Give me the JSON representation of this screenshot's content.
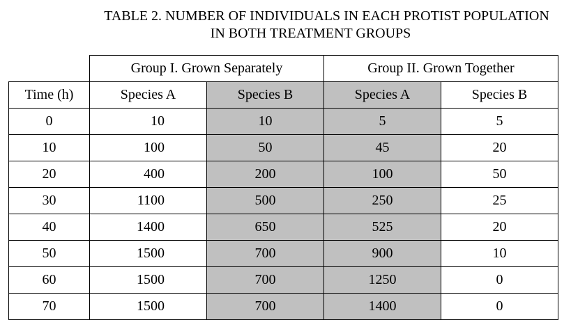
{
  "title": {
    "line1": "TABLE 2. NUMBER OF INDIVIDUALS IN EACH PROTIST POPULATION",
    "line2": "IN BOTH TREATMENT GROUPS"
  },
  "groups": {
    "group1": "Group I. Grown Separately",
    "group2": "Group II. Grown Together"
  },
  "headers": [
    "Time (h)",
    "Species A",
    "Species B",
    "Species A",
    "Species B"
  ],
  "rows": [
    [
      "0",
      "10",
      "10",
      "5",
      "5"
    ],
    [
      "10",
      "100",
      "50",
      "45",
      "20"
    ],
    [
      "20",
      "400",
      "200",
      "100",
      "50"
    ],
    [
      "30",
      "1100",
      "500",
      "250",
      "25"
    ],
    [
      "40",
      "1400",
      "650",
      "525",
      "20"
    ],
    [
      "50",
      "1500",
      "700",
      "900",
      "10"
    ],
    [
      "60",
      "1500",
      "700",
      "1250",
      "0"
    ],
    [
      "70",
      "1500",
      "700",
      "1400",
      "0"
    ]
  ],
  "colors": {
    "shaded_cell": "#c0c0c0",
    "border": "#000000"
  }
}
